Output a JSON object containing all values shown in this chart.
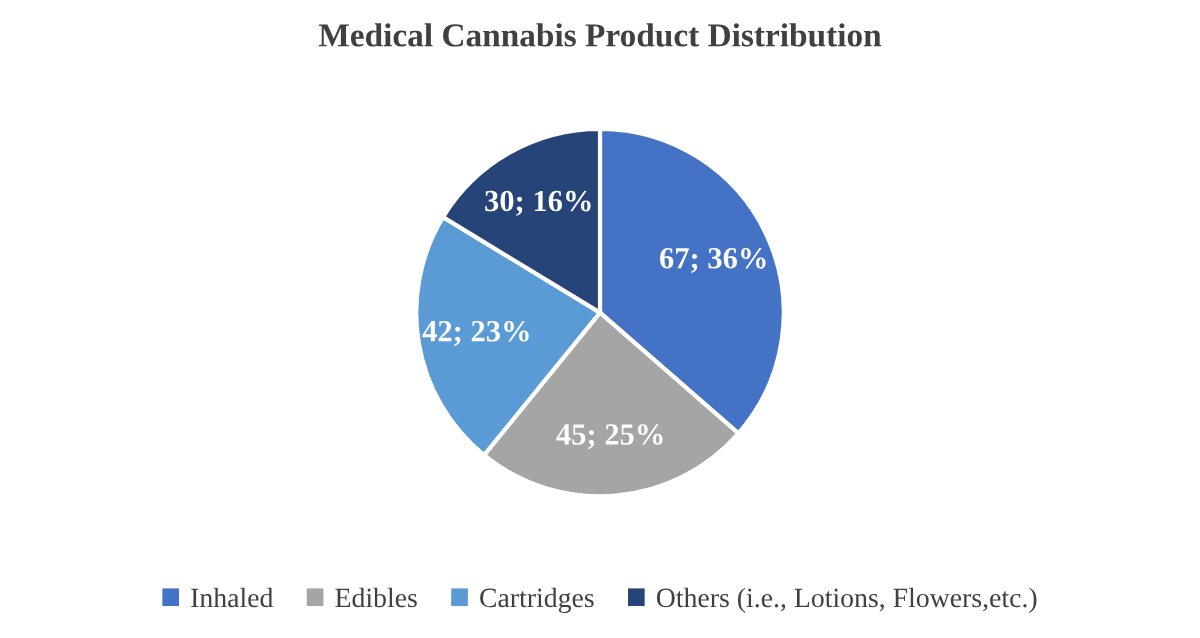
{
  "chart_data": {
    "type": "pie",
    "title": "Medical Cannabis Product Distribution",
    "categories": [
      "Inhaled",
      "Edibles",
      "Cartridges",
      "Others (i.e., Lotions, Flowers,etc.)"
    ],
    "values": [
      67,
      45,
      42,
      30
    ],
    "colors": [
      "#4472c4",
      "#a5a5a5",
      "#5b9bd5",
      "#264478"
    ],
    "value_labels": [
      "67; 36%",
      "45; 25%",
      "42; 23%",
      "30; 16%"
    ],
    "legend": "bottom"
  }
}
